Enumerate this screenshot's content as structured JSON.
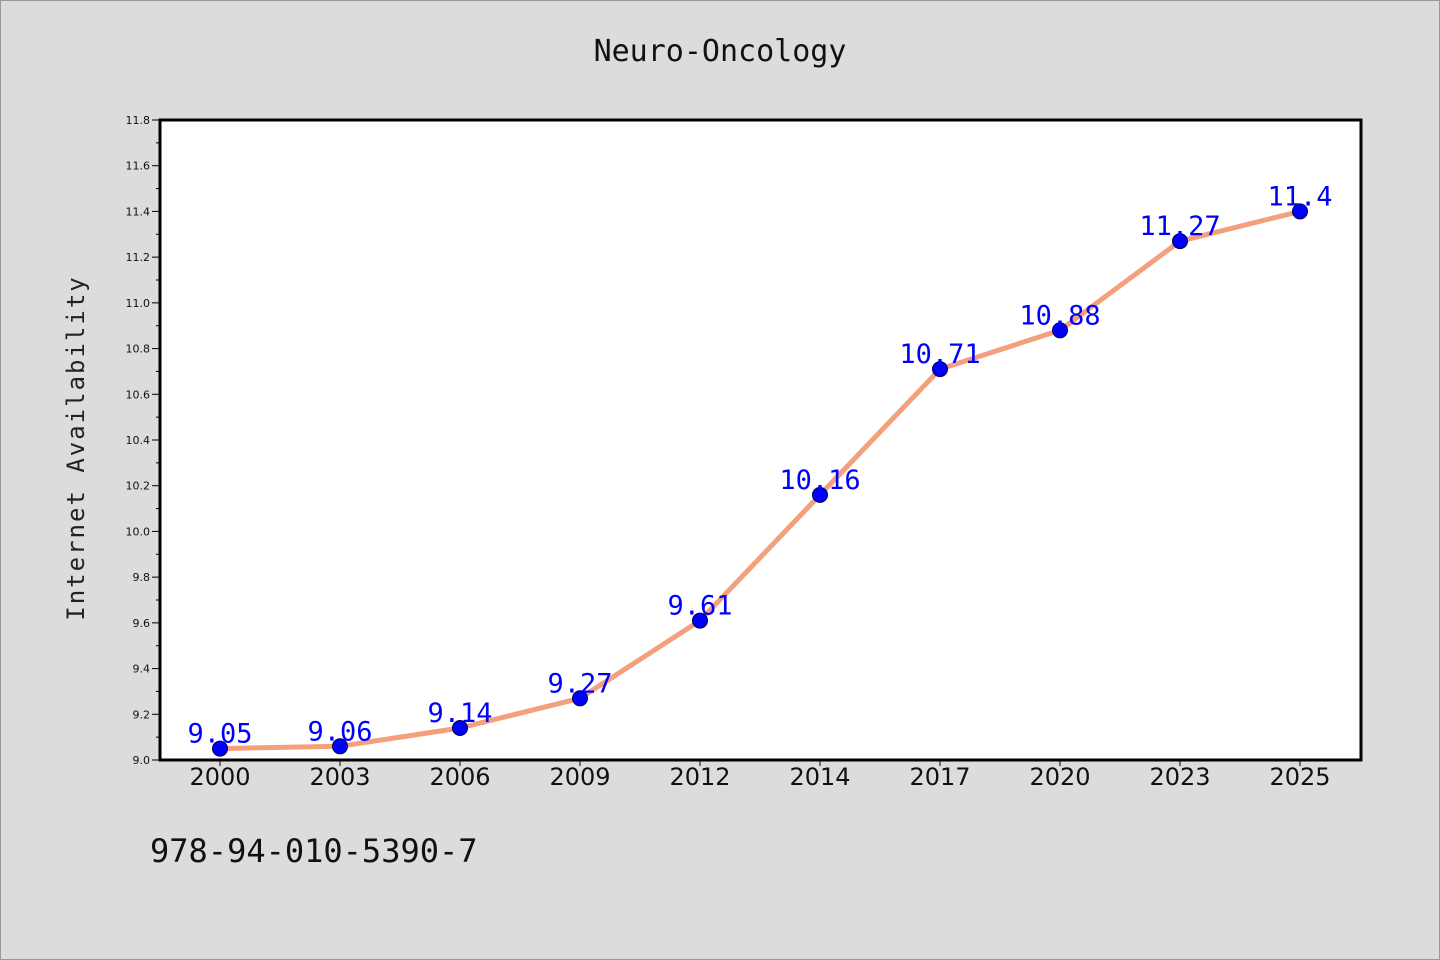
{
  "chart_data": {
    "type": "line",
    "title": "Neuro-Oncology",
    "xlabel": "",
    "ylabel": "Internet Availability",
    "categories": [
      "2000",
      "2003",
      "2006",
      "2009",
      "2012",
      "2014",
      "2017",
      "2020",
      "2023",
      "2025"
    ],
    "series": [
      {
        "values": [
          9.05,
          9.06,
          9.14,
          9.27,
          9.61,
          10.16,
          10.71,
          10.88,
          11.27,
          11.4
        ],
        "labels": [
          "9.05",
          "9.06",
          "9.14",
          "9.27",
          "9.61",
          "10.16",
          "10.71",
          "10.88",
          "11.27",
          "11.4"
        ],
        "line_color": "#f4a07c",
        "marker_color": "#0000ff"
      }
    ],
    "ylim": [
      9.0,
      11.8
    ],
    "yticks": [
      "9.0",
      "9.2",
      "9.4",
      "9.6",
      "9.8",
      "10.0",
      "10.2",
      "10.4",
      "10.6",
      "10.8",
      "11.0",
      "11.2",
      "11.4",
      "11.6",
      "11.8"
    ],
    "grid": false,
    "background": "#dcdcdc",
    "plot_background": "#ffffff"
  },
  "footer": {
    "code": "978-94-010-5390-7"
  }
}
